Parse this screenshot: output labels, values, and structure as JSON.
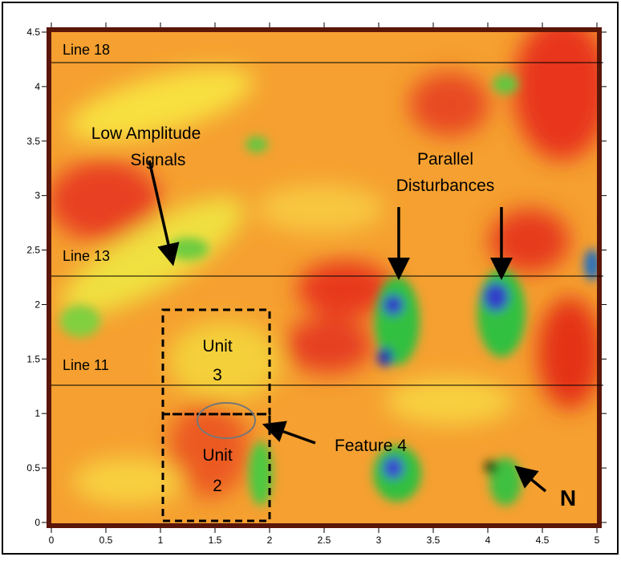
{
  "chart_data": {
    "type": "image",
    "xlim": [
      0,
      5
    ],
    "ylim": [
      0,
      4.5
    ],
    "xticks": [
      0,
      0.5,
      1,
      1.5,
      2,
      2.5,
      3,
      3.5,
      4,
      4.5,
      5
    ],
    "yticks": [
      0,
      0.5,
      1,
      1.5,
      2,
      2.5,
      3,
      3.5,
      4,
      4.5
    ],
    "annotations": {
      "line_18": "Line 18",
      "line_13": "Line 13",
      "line_11": "Line 11",
      "low_amplitude_1": "Low Amplitude",
      "low_amplitude_2": "Signals",
      "parallel_1": "Parallel",
      "parallel_2": "Disturbances",
      "unit3_1": "Unit",
      "unit3_2": "3",
      "unit2_1": "Unit",
      "unit2_2": "2",
      "feature": "Feature 4",
      "north": "N"
    }
  }
}
